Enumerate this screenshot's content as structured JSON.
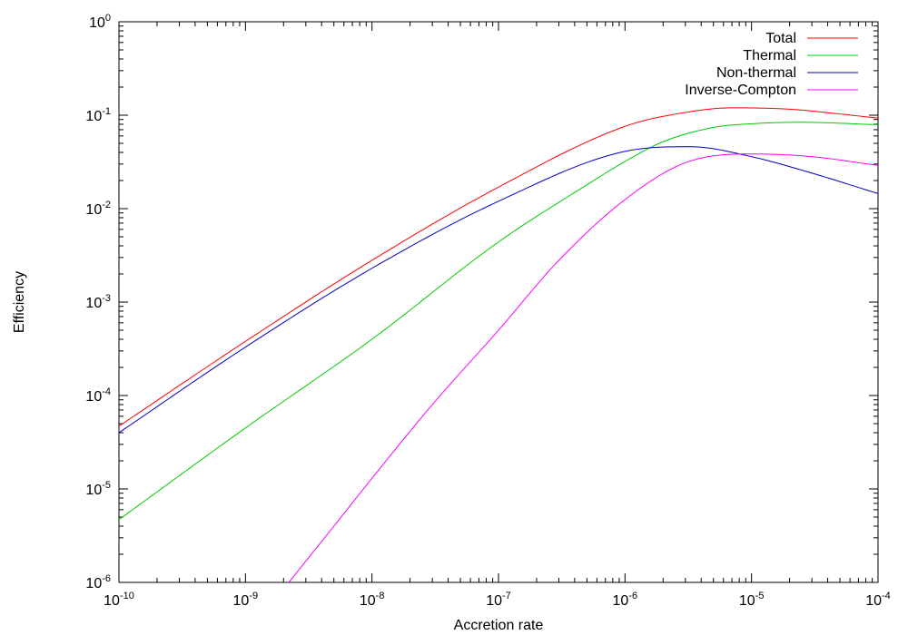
{
  "chart_data": {
    "type": "line",
    "xlabel": "Accretion rate",
    "ylabel": "Efficiency",
    "xscale": "log",
    "yscale": "log",
    "xlim": [
      1e-10,
      0.0001
    ],
    "ylim": [
      1e-06,
      1
    ],
    "grid": false,
    "legend_position": "top-right",
    "x_ticks": [
      {
        "base": "10",
        "exp": "-10"
      },
      {
        "base": "10",
        "exp": "-9"
      },
      {
        "base": "10",
        "exp": "-8"
      },
      {
        "base": "10",
        "exp": "-7"
      },
      {
        "base": "10",
        "exp": "-6"
      },
      {
        "base": "10",
        "exp": "-5"
      },
      {
        "base": "10",
        "exp": "-4"
      }
    ],
    "y_ticks": [
      {
        "base": "10",
        "exp": "-6"
      },
      {
        "base": "10",
        "exp": "-5"
      },
      {
        "base": "10",
        "exp": "-4"
      },
      {
        "base": "10",
        "exp": "-3"
      },
      {
        "base": "10",
        "exp": "-2"
      },
      {
        "base": "10",
        "exp": "-1"
      },
      {
        "base": "10",
        "exp": "0"
      }
    ],
    "series": [
      {
        "name": "Total",
        "color": "#ff0000",
        "x": [
          1e-10,
          1e-09,
          1e-08,
          1e-07,
          1e-06,
          3e-06,
          7e-06,
          2e-05,
          5e-05,
          0.0001
        ],
        "y": [
          4.7e-05,
          0.00038,
          0.0028,
          0.017,
          0.076,
          0.107,
          0.12,
          0.116,
          0.103,
          0.093
        ]
      },
      {
        "name": "Thermal",
        "color": "#00cc00",
        "x": [
          1e-10,
          1e-09,
          1e-08,
          1e-07,
          5e-07,
          1e-06,
          2e-06,
          5e-06,
          1e-05,
          2.5e-05,
          0.0001
        ],
        "y": [
          4.7e-06,
          4.5e-05,
          0.0004,
          0.0044,
          0.018,
          0.032,
          0.052,
          0.074,
          0.081,
          0.084,
          0.079
        ]
      },
      {
        "name": "Non-thermal",
        "color": "#0000cc",
        "x": [
          1e-10,
          1e-09,
          1e-08,
          1e-07,
          1e-06,
          3.3e-06,
          1e-05,
          3e-05,
          0.0001
        ],
        "y": [
          4e-05,
          0.00033,
          0.0023,
          0.012,
          0.041,
          0.046,
          0.036,
          0.024,
          0.0145
        ]
      },
      {
        "name": "Inverse-Compton",
        "color": "#ff00ff",
        "x": [
          2.2e-09,
          5e-09,
          1e-08,
          3e-08,
          1e-07,
          3e-07,
          1e-06,
          3e-06,
          1e-05,
          3e-05,
          0.0001
        ],
        "y": [
          1e-06,
          4e-06,
          1.3e-05,
          8e-05,
          0.0005,
          0.0028,
          0.0125,
          0.031,
          0.0385,
          0.036,
          0.029
        ]
      }
    ]
  }
}
